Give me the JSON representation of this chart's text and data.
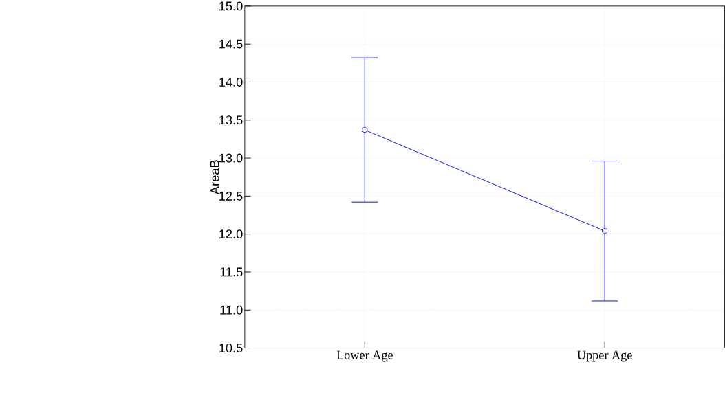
{
  "chart_data": {
    "type": "line",
    "ylabel": "AreaB",
    "categories": [
      "Lower Age",
      "Upper Age"
    ],
    "series": [
      {
        "color": "#0000ff",
        "values": [
          13.37,
          12.04
        ],
        "errors": [
          0.95,
          0.92
        ]
      }
    ],
    "ylim": [
      10.5,
      15.0
    ],
    "yticks": [
      {
        "value": 10.5,
        "label": "10.5"
      },
      {
        "value": 11,
        "label": "11.0"
      },
      {
        "value": 11.5,
        "label": "11.5"
      },
      {
        "value": 12,
        "label": "12.0"
      },
      {
        "value": 12.5,
        "label": "12.5"
      },
      {
        "value": 13,
        "label": "13.0"
      },
      {
        "value": 13.5,
        "label": "13.5"
      },
      {
        "value": 14,
        "label": "14.0"
      },
      {
        "value": 14.5,
        "label": "14.5"
      },
      {
        "value": 15,
        "label": "15.0"
      }
    ],
    "grid": true,
    "marker": "circle",
    "line_style": "solid"
  }
}
